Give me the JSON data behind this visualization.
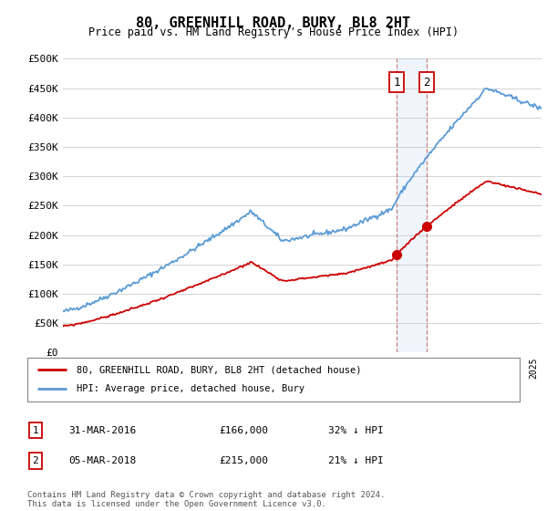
{
  "title": "80, GREENHILL ROAD, BURY, BL8 2HT",
  "subtitle": "Price paid vs. HM Land Registry's House Price Index (HPI)",
  "ylabel_ticks": [
    "£0",
    "£50K",
    "£100K",
    "£150K",
    "£200K",
    "£250K",
    "£300K",
    "£350K",
    "£400K",
    "£450K",
    "£500K"
  ],
  "ytick_values": [
    0,
    50000,
    100000,
    150000,
    200000,
    250000,
    300000,
    350000,
    400000,
    450000,
    500000
  ],
  "ylim": [
    0,
    500000
  ],
  "xlim_start": 1995.0,
  "xlim_end": 2025.5,
  "hpi_color": "#5b9bd5",
  "price_color": "#cc0000",
  "sale1_x": 2016.25,
  "sale1_y": 166000,
  "sale2_x": 2018.17,
  "sale2_y": 215000,
  "sale1_label": "1",
  "sale2_label": "2",
  "legend_line1": "80, GREENHILL ROAD, BURY, BL8 2HT (detached house)",
  "legend_line2": "HPI: Average price, detached house, Bury",
  "footnote": "Contains HM Land Registry data © Crown copyright and database right 2024.\nThis data is licensed under the Open Government Licence v3.0.",
  "bg_color": "#ffffff",
  "grid_color": "#cccccc",
  "highlight_color": "#ddeeff"
}
